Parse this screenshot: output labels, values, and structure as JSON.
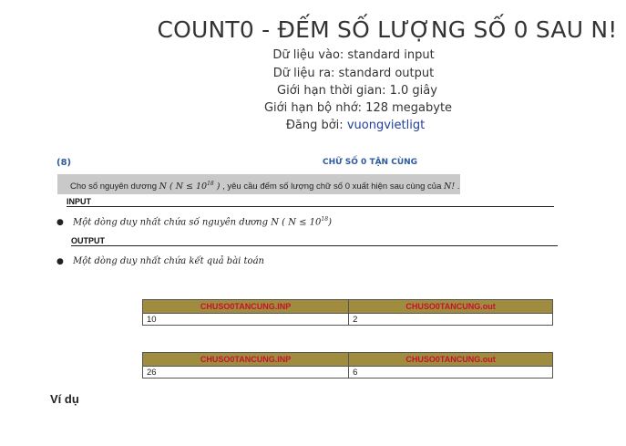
{
  "problem": {
    "title": "COUNT0 - ĐẾM SỐ LƯỢNG SỐ 0 SAU N!",
    "meta": [
      {
        "label": "Dữ liệu vào: standard input"
      },
      {
        "label": "Dữ liệu ra: standard output"
      },
      {
        "label": "Giới hạn thời gian: 1.0 giây"
      },
      {
        "label": "Giới hạn bộ nhớ: 128 megabyte"
      }
    ],
    "posted_by_label": "Đăng bởi: ",
    "author": "vuongvietligt"
  },
  "statement": {
    "number": "(8)",
    "heading": "CHỮ SỐ 0 TẬN CÙNG",
    "text_before": "Cho số nguyên dương ",
    "math_n": "N ( N ≤ 10",
    "math_exp": "18",
    "math_close": " )",
    "text_after": " , yêu cầu đếm số lượng chữ số 0 xuất hiện sau cùng của ",
    "math_fact": "N!",
    "text_end": " .",
    "input_label": "INPUT",
    "input_bullet": "Một dòng duy nhất chứa số nguyên dương ",
    "input_math": "N ( N ≤ 10",
    "input_exp": "18",
    "input_close": ")",
    "output_label": "OUTPUT",
    "output_bullet": "Một dòng duy nhất chứa kết quả bài toán"
  },
  "examples": [
    {
      "inp_header": "CHUSO0TANCUNG.INP",
      "out_header": "CHUSO0TANCUNG.out",
      "input": "10",
      "output": "2"
    },
    {
      "inp_header": "CHUSO0TANCUNG.INP",
      "out_header": "CHUSO0TANCUNG.out",
      "input": "26",
      "output": "6"
    }
  ],
  "example_section_label": "Ví dụ",
  "colors": {
    "link": "#1f3f99",
    "heading_blue": "#2e5a9e",
    "table_header_bg": "#a08c3e",
    "table_header_text": "#c8102e",
    "statement_bg": "#c9c9c9"
  }
}
